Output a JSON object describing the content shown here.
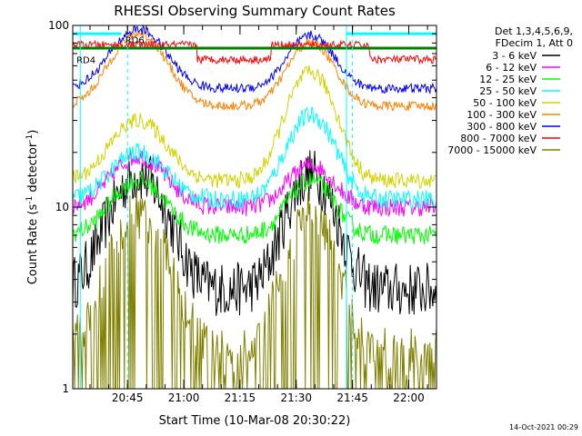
{
  "chart_data": {
    "type": "line",
    "title": "RHESSI Observing Summary Count Rates",
    "xlabel": "Start Time (10-Mar-08 20:30:22)",
    "ylabel_main": "Count Rate (s",
    "ylabel_sup": "-1",
    "ylabel_tail": " detector",
    "ylabel_close": ")",
    "ylim": [
      1,
      100
    ],
    "y_scale": "log",
    "x_range_min": [
      0,
      97
    ],
    "y_ticks": [
      "1",
      "10",
      "100"
    ],
    "x_ticks": [
      {
        "label": "20:45",
        "min": 14.6
      },
      {
        "label": "21:00",
        "min": 29.6
      },
      {
        "label": "21:15",
        "min": 44.6
      },
      {
        "label": "21:30",
        "min": 59.6
      },
      {
        "label": "21:45",
        "min": 74.6
      },
      {
        "label": "22:00",
        "min": 89.6
      }
    ],
    "legend_header": [
      "Det 1,3,4,5,6,9,",
      "FDecim 1, Att 0"
    ],
    "legend_position": "right, outside plot",
    "series": [
      {
        "name": "3 - 6 keV",
        "color": "#000000",
        "base": 3.5,
        "peak": 15,
        "peak2": 15,
        "noise": 0.35
      },
      {
        "name": "6 - 12 keV",
        "color": "#ff00ff",
        "base": 10,
        "peak": 19,
        "peak2": 17,
        "noise": 0.12
      },
      {
        "name": "12 - 25 keV",
        "color": "#00ff00",
        "base": 7,
        "peak": 14,
        "peak2": 14,
        "noise": 0.12
      },
      {
        "name": "25 - 50 keV",
        "color": "#00ffff",
        "base": 11,
        "peak": 20,
        "peak2": 32,
        "noise": 0.12
      },
      {
        "name": "50 - 100 keV",
        "color": "#d2d200",
        "base": 14,
        "peak": 30,
        "peak2": 55,
        "noise": 0.1
      },
      {
        "name": "100 - 300 keV",
        "color": "#ff8000",
        "base": 36,
        "peak": 90,
        "peak2": 80,
        "noise": 0.06
      },
      {
        "name": "300 - 800 keV",
        "color": "#0000ff",
        "base": 45,
        "peak": 95,
        "peak2": 88,
        "noise": 0.06
      },
      {
        "name": "800 - 7000 keV",
        "color": "#ff0000",
        "base": 65,
        "peak": 70,
        "peak2": 75,
        "noise": 0.05
      },
      {
        "name": "7000 - 15000 keV",
        "color": "#808000",
        "base": 1.6,
        "peak": 9,
        "peak2": 9,
        "noise": 0.3
      }
    ],
    "region_labels": [
      {
        "text": "RD4",
        "color": "#008000"
      },
      {
        "text": "RD6",
        "color": "#008000"
      }
    ],
    "saa_bar_color": "#00ffff",
    "dashed_lines_min": [
      14.6,
      74.6
    ],
    "timestamp": "14-Oct-2021 00:29"
  }
}
